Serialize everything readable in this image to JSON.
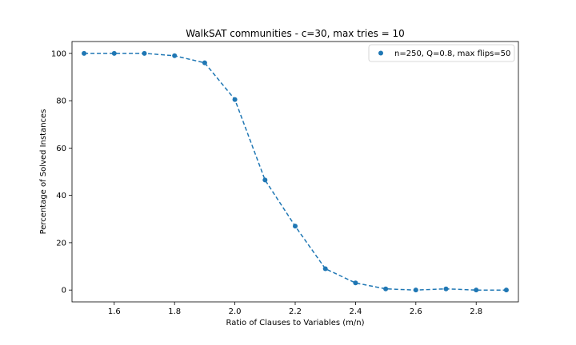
{
  "chart_data": {
    "type": "scatter",
    "title": "WalkSAT communities - c=30, max tries = 10",
    "xlabel": "Ratio of Clauses to Variables (m/n)",
    "ylabel": "Percentage of Solved Instances",
    "xlim": [
      1.46,
      2.94
    ],
    "ylim": [
      -5,
      105
    ],
    "xticks": [
      "1.6",
      "1.8",
      "2.0",
      "2.2",
      "2.4",
      "2.6",
      "2.8"
    ],
    "yticks": [
      "0",
      "20",
      "40",
      "60",
      "80",
      "100"
    ],
    "grid": false,
    "legend_position": "top-right",
    "series": [
      {
        "name": "n=250, Q=0.8, max flips=50",
        "color": "#1f77b4",
        "marker": "circle",
        "connector": "dashed line",
        "x": [
          1.5,
          1.6,
          1.7,
          1.8,
          1.9,
          2.0,
          2.1,
          2.2,
          2.3,
          2.4,
          2.5,
          2.6,
          2.7,
          2.8,
          2.9
        ],
        "y": [
          100,
          100,
          100,
          99,
          96,
          80.5,
          46.5,
          27,
          9,
          3,
          0.5,
          0,
          0.5,
          0,
          0
        ]
      }
    ]
  }
}
